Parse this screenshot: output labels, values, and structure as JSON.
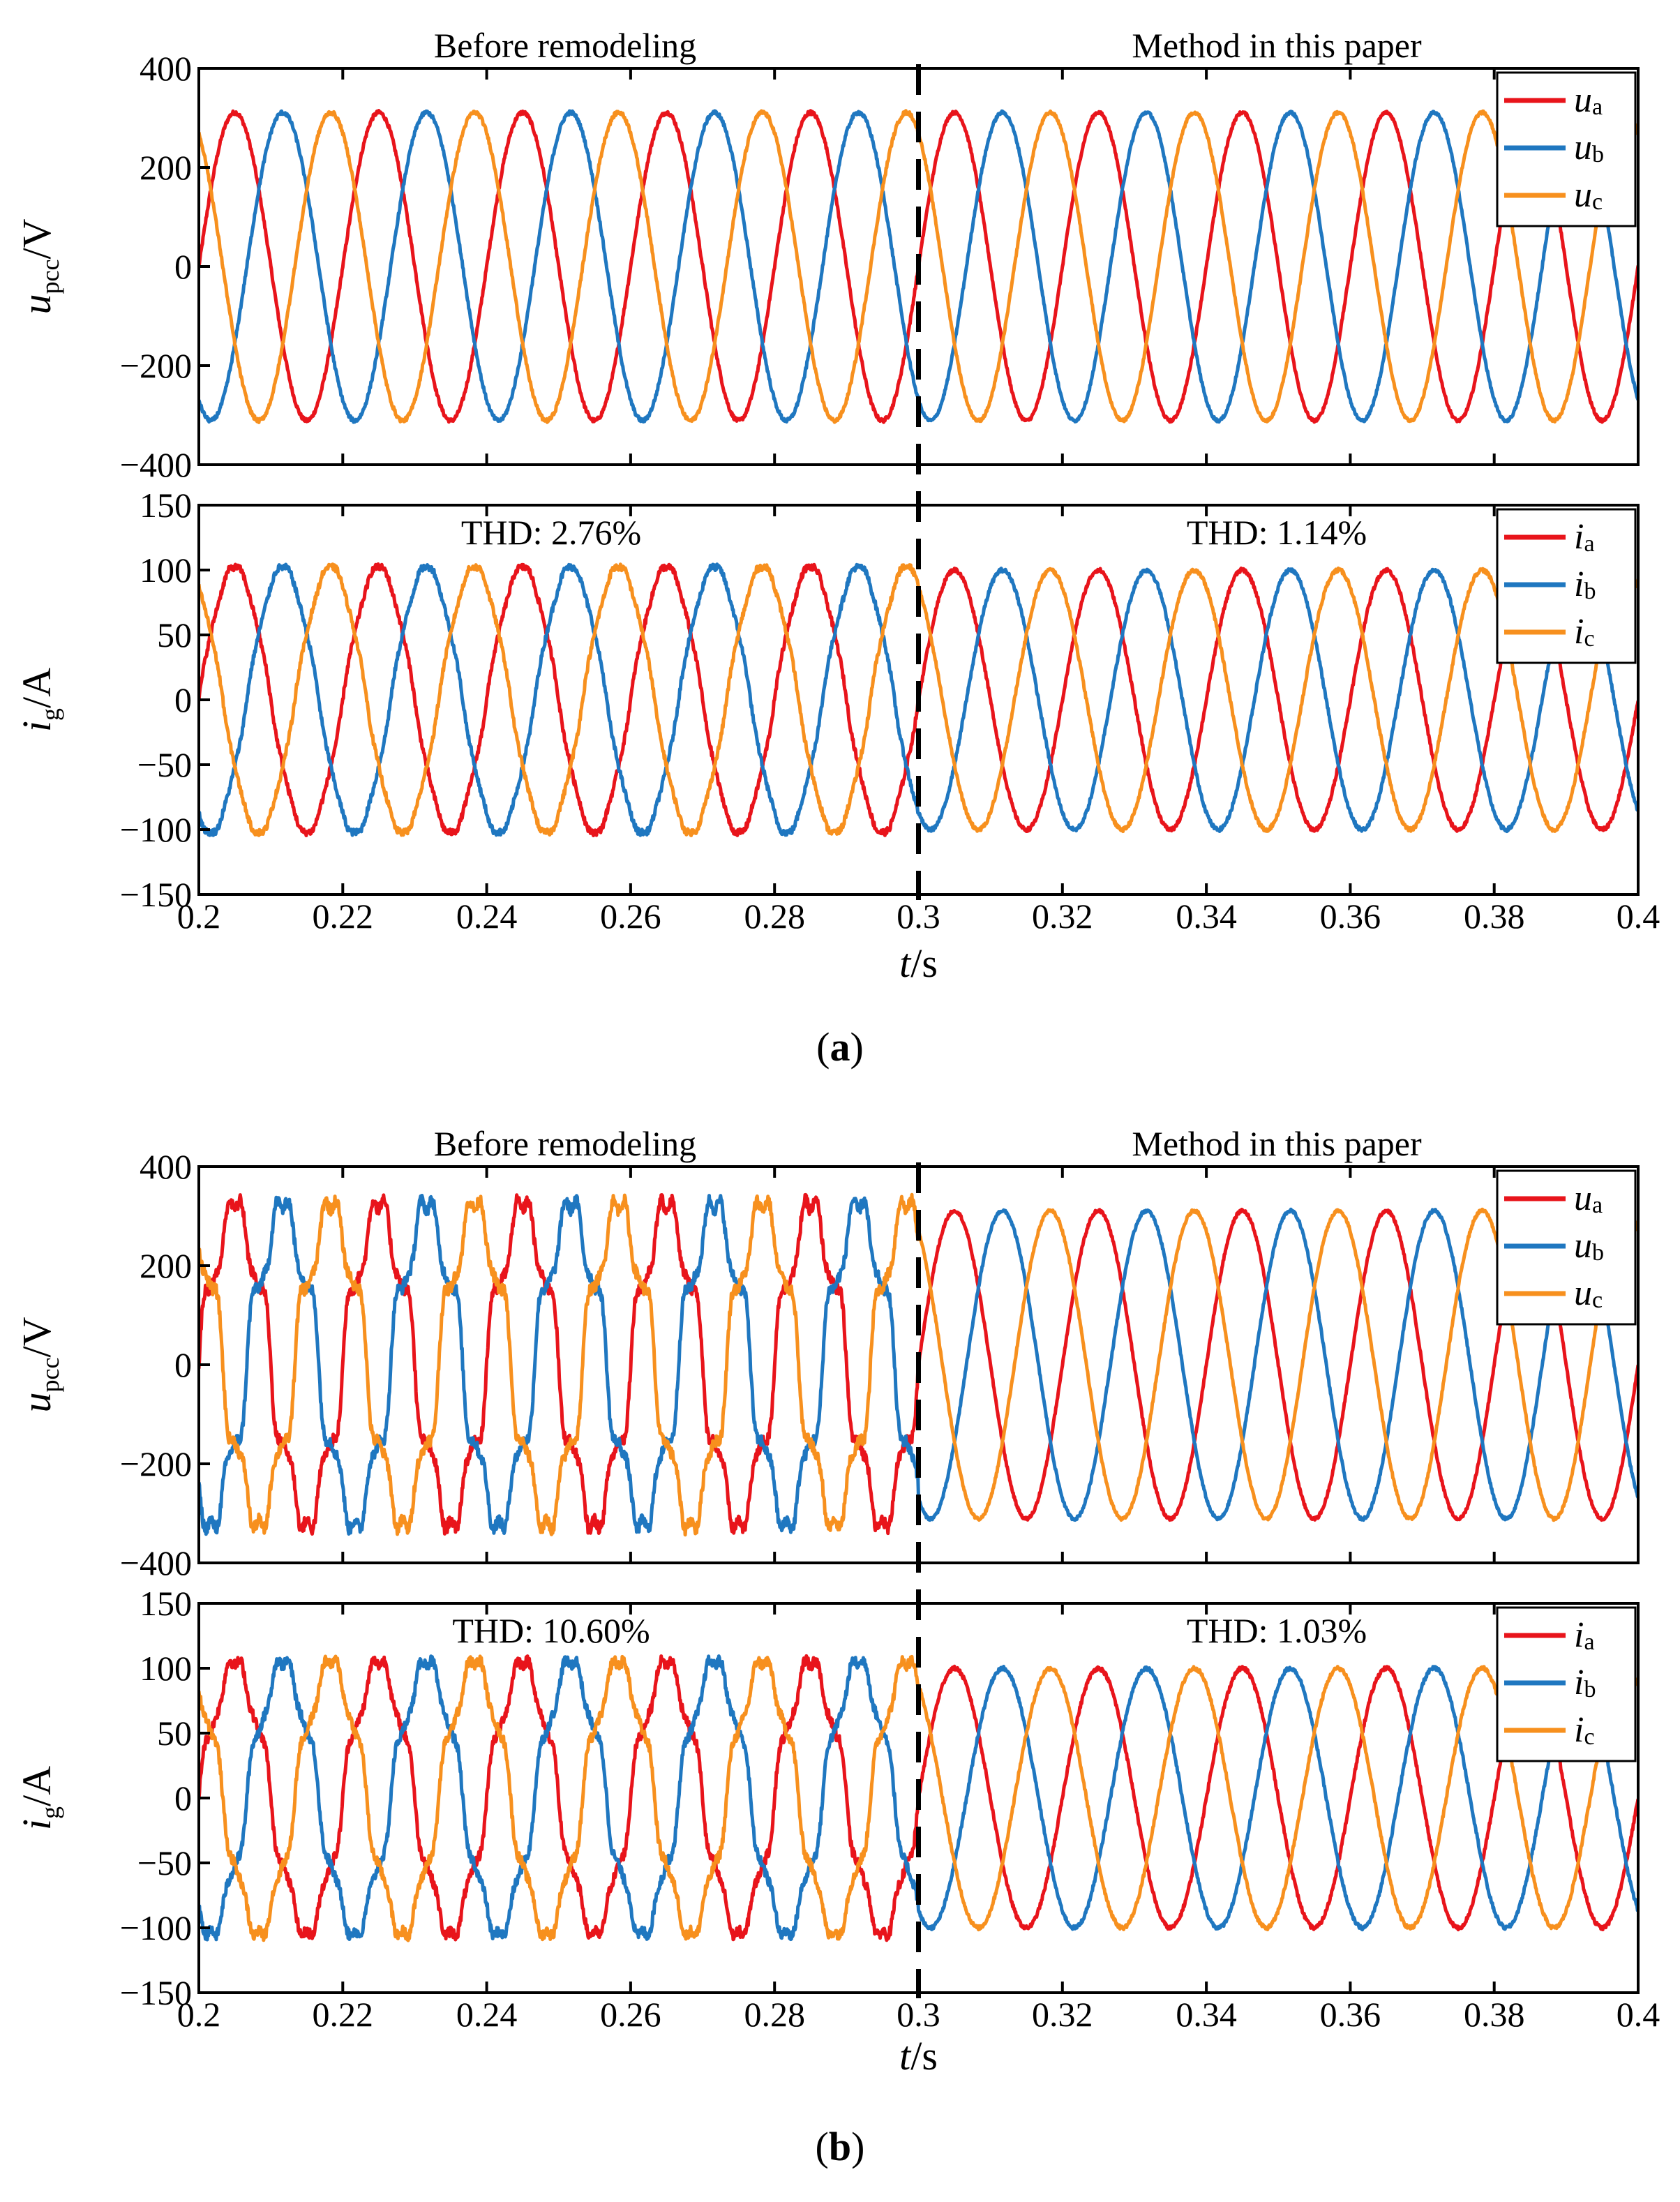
{
  "chart_data": [
    {
      "id": "a",
      "type": "line",
      "caption": "a",
      "x": {
        "min": 0.2,
        "max": 0.4,
        "ticks": [
          "0.2",
          "0.22",
          "0.24",
          "0.26",
          "0.28",
          "0.3",
          "0.32",
          "0.34",
          "0.36",
          "0.38",
          "0.4"
        ],
        "label_var": "t",
        "label_unit": "/s"
      },
      "divider_x": 0.3,
      "panels": [
        {
          "ylabel_var": "u",
          "ylabel_sub": "pcc",
          "ylabel_unit": "/V",
          "ylim": [
            -400,
            400
          ],
          "yticks": [
            "400",
            "200",
            "0",
            "−200",
            "−400"
          ],
          "ytick_values": [
            400,
            200,
            0,
            -200,
            -400
          ],
          "annotation_left": "Before remodeling",
          "annotation_right": "Method in this paper",
          "freq_hz": 50,
          "series": [
            {
              "name": "u",
              "sub": "a",
              "color": "#e8141b",
              "phase_deg": 0,
              "amp_before": 311,
              "amp_after": 311,
              "harm_before": 0,
              "ripple_before": 4,
              "ripple_after": 3
            },
            {
              "name": "u",
              "sub": "b",
              "color": "#1f77c0",
              "phase_deg": -120,
              "amp_before": 311,
              "amp_after": 311,
              "harm_before": 0,
              "ripple_before": 4,
              "ripple_after": 3
            },
            {
              "name": "u",
              "sub": "c",
              "color": "#f7901e",
              "phase_deg": 120,
              "amp_before": 311,
              "amp_after": 311,
              "harm_before": 0,
              "ripple_before": 4,
              "ripple_after": 3
            }
          ]
        },
        {
          "ylabel_var": "i",
          "ylabel_sub": "g",
          "ylabel_unit": "/A",
          "ylim": [
            -150,
            150
          ],
          "yticks": [
            "150",
            "100",
            "50",
            "0",
            "−50",
            "−100",
            "−150"
          ],
          "ytick_values": [
            150,
            100,
            50,
            0,
            -50,
            -100,
            -150
          ],
          "annotation_left": "THD: 2.76%",
          "annotation_right": "THD: 1.14%",
          "freq_hz": 50,
          "series": [
            {
              "name": "i",
              "sub": "a",
              "color": "#e8141b",
              "phase_deg": 0,
              "amp_before": 102,
              "amp_after": 100,
              "harm_before": 2,
              "ripple_before": 2.5,
              "ripple_after": 1.5
            },
            {
              "name": "i",
              "sub": "b",
              "color": "#1f77c0",
              "phase_deg": -120,
              "amp_before": 102,
              "amp_after": 100,
              "harm_before": 2,
              "ripple_before": 2.5,
              "ripple_after": 1.5
            },
            {
              "name": "i",
              "sub": "c",
              "color": "#f7901e",
              "phase_deg": 120,
              "amp_before": 102,
              "amp_after": 100,
              "harm_before": 2,
              "ripple_before": 2.5,
              "ripple_after": 1.5
            }
          ]
        }
      ]
    },
    {
      "id": "b",
      "type": "line",
      "caption": "b",
      "x": {
        "min": 0.2,
        "max": 0.4,
        "ticks": [
          "0.2",
          "0.22",
          "0.24",
          "0.26",
          "0.28",
          "0.3",
          "0.32",
          "0.34",
          "0.36",
          "0.38",
          "0.4"
        ],
        "label_var": "t",
        "label_unit": "/s"
      },
      "divider_x": 0.3,
      "panels": [
        {
          "ylabel_var": "u",
          "ylabel_sub": "pcc",
          "ylabel_unit": "/V",
          "ylim": [
            -400,
            400
          ],
          "yticks": [
            "400",
            "200",
            "0",
            "−200",
            "−400"
          ],
          "ytick_values": [
            400,
            200,
            0,
            -200,
            -400
          ],
          "annotation_left": "Before remodeling",
          "annotation_right": "Method in this paper",
          "freq_hz": 50,
          "series": [
            {
              "name": "u",
              "sub": "a",
              "color": "#e8141b",
              "phase_deg": 0,
              "amp_before": 311,
              "amp_after": 311,
              "harm_before": 40,
              "ripple_before": 12,
              "ripple_after": 3
            },
            {
              "name": "u",
              "sub": "b",
              "color": "#1f77c0",
              "phase_deg": -120,
              "amp_before": 311,
              "amp_after": 311,
              "harm_before": 40,
              "ripple_before": 12,
              "ripple_after": 3
            },
            {
              "name": "u",
              "sub": "c",
              "color": "#f7901e",
              "phase_deg": 120,
              "amp_before": 311,
              "amp_after": 311,
              "harm_before": 40,
              "ripple_before": 12,
              "ripple_after": 3
            }
          ]
        },
        {
          "ylabel_var": "i",
          "ylabel_sub": "g",
          "ylabel_unit": "/A",
          "ylim": [
            -150,
            150
          ],
          "yticks": [
            "150",
            "100",
            "50",
            "0",
            "−50",
            "−100",
            "−150"
          ],
          "ytick_values": [
            150,
            100,
            50,
            0,
            -50,
            -100,
            -150
          ],
          "annotation_left": "THD: 10.60%",
          "annotation_right": "THD: 1.03%",
          "freq_hz": 50,
          "series": [
            {
              "name": "i",
              "sub": "a",
              "color": "#e8141b",
              "phase_deg": 0,
              "amp_before": 102,
              "amp_after": 100,
              "harm_before": 9,
              "ripple_before": 4,
              "ripple_after": 1.5
            },
            {
              "name": "i",
              "sub": "b",
              "color": "#1f77c0",
              "phase_deg": -120,
              "amp_before": 102,
              "amp_after": 100,
              "harm_before": 9,
              "ripple_before": 4,
              "ripple_after": 1.5
            },
            {
              "name": "i",
              "sub": "c",
              "color": "#f7901e",
              "phase_deg": 120,
              "amp_before": 102,
              "amp_after": 100,
              "harm_before": 9,
              "ripple_before": 4,
              "ripple_after": 1.5
            }
          ]
        }
      ]
    }
  ]
}
